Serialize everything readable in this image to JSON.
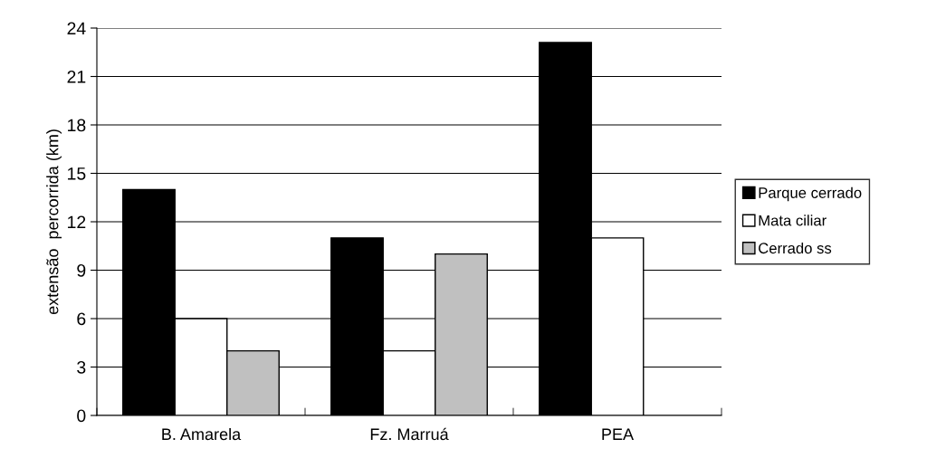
{
  "chart_data": {
    "type": "bar",
    "ylabel": "extensão  percorrida (km)",
    "categories": [
      "B. Amarela",
      "Fz. Marruá",
      "PEA"
    ],
    "series": [
      {
        "name": "Parque cerrado",
        "color": "#000000",
        "values": [
          14,
          11,
          23.1
        ]
      },
      {
        "name": "Mata ciliar",
        "color": "#ffffff",
        "values": [
          6,
          4,
          11
        ]
      },
      {
        "name": "Cerrado ss",
        "color": "#c0c0c0",
        "values": [
          4,
          10,
          null
        ]
      }
    ],
    "ylim": [
      0,
      24
    ],
    "yticks": [
      0,
      3,
      6,
      9,
      12,
      15,
      18,
      21,
      24
    ],
    "grid": "y",
    "legend": "right"
  }
}
